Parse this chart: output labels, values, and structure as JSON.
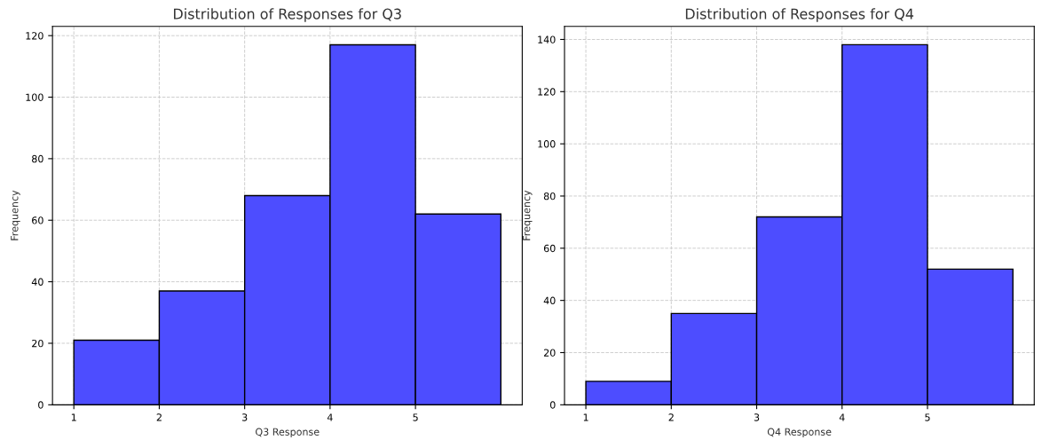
{
  "chart_data": [
    {
      "type": "histogram",
      "title": "Distribution of Responses for Q3",
      "xlabel": "Q3 Response",
      "ylabel": "Frequency",
      "bins": [
        1,
        2,
        3,
        4,
        5,
        6
      ],
      "values": [
        21,
        37,
        68,
        117,
        62
      ],
      "color": "#4d4dff",
      "xlim": [
        0.75,
        6.25
      ],
      "xticks": [
        1,
        2,
        3,
        4,
        5
      ],
      "ylim": [
        0,
        123
      ],
      "yticks": [
        0,
        20,
        40,
        60,
        80,
        100,
        120
      ],
      "grid": true
    },
    {
      "type": "histogram",
      "title": "Distribution of Responses for Q4",
      "xlabel": "Q4 Response",
      "ylabel": "Frequency",
      "bins": [
        1,
        2,
        3,
        4,
        5,
        6
      ],
      "values": [
        9,
        35,
        72,
        138,
        52
      ],
      "color": "#4d4dff",
      "xlim": [
        0.75,
        6.25
      ],
      "xticks": [
        1,
        2,
        3,
        4,
        5
      ],
      "ylim": [
        0,
        145
      ],
      "yticks": [
        0,
        20,
        40,
        60,
        80,
        100,
        120,
        140
      ],
      "grid": true
    }
  ]
}
